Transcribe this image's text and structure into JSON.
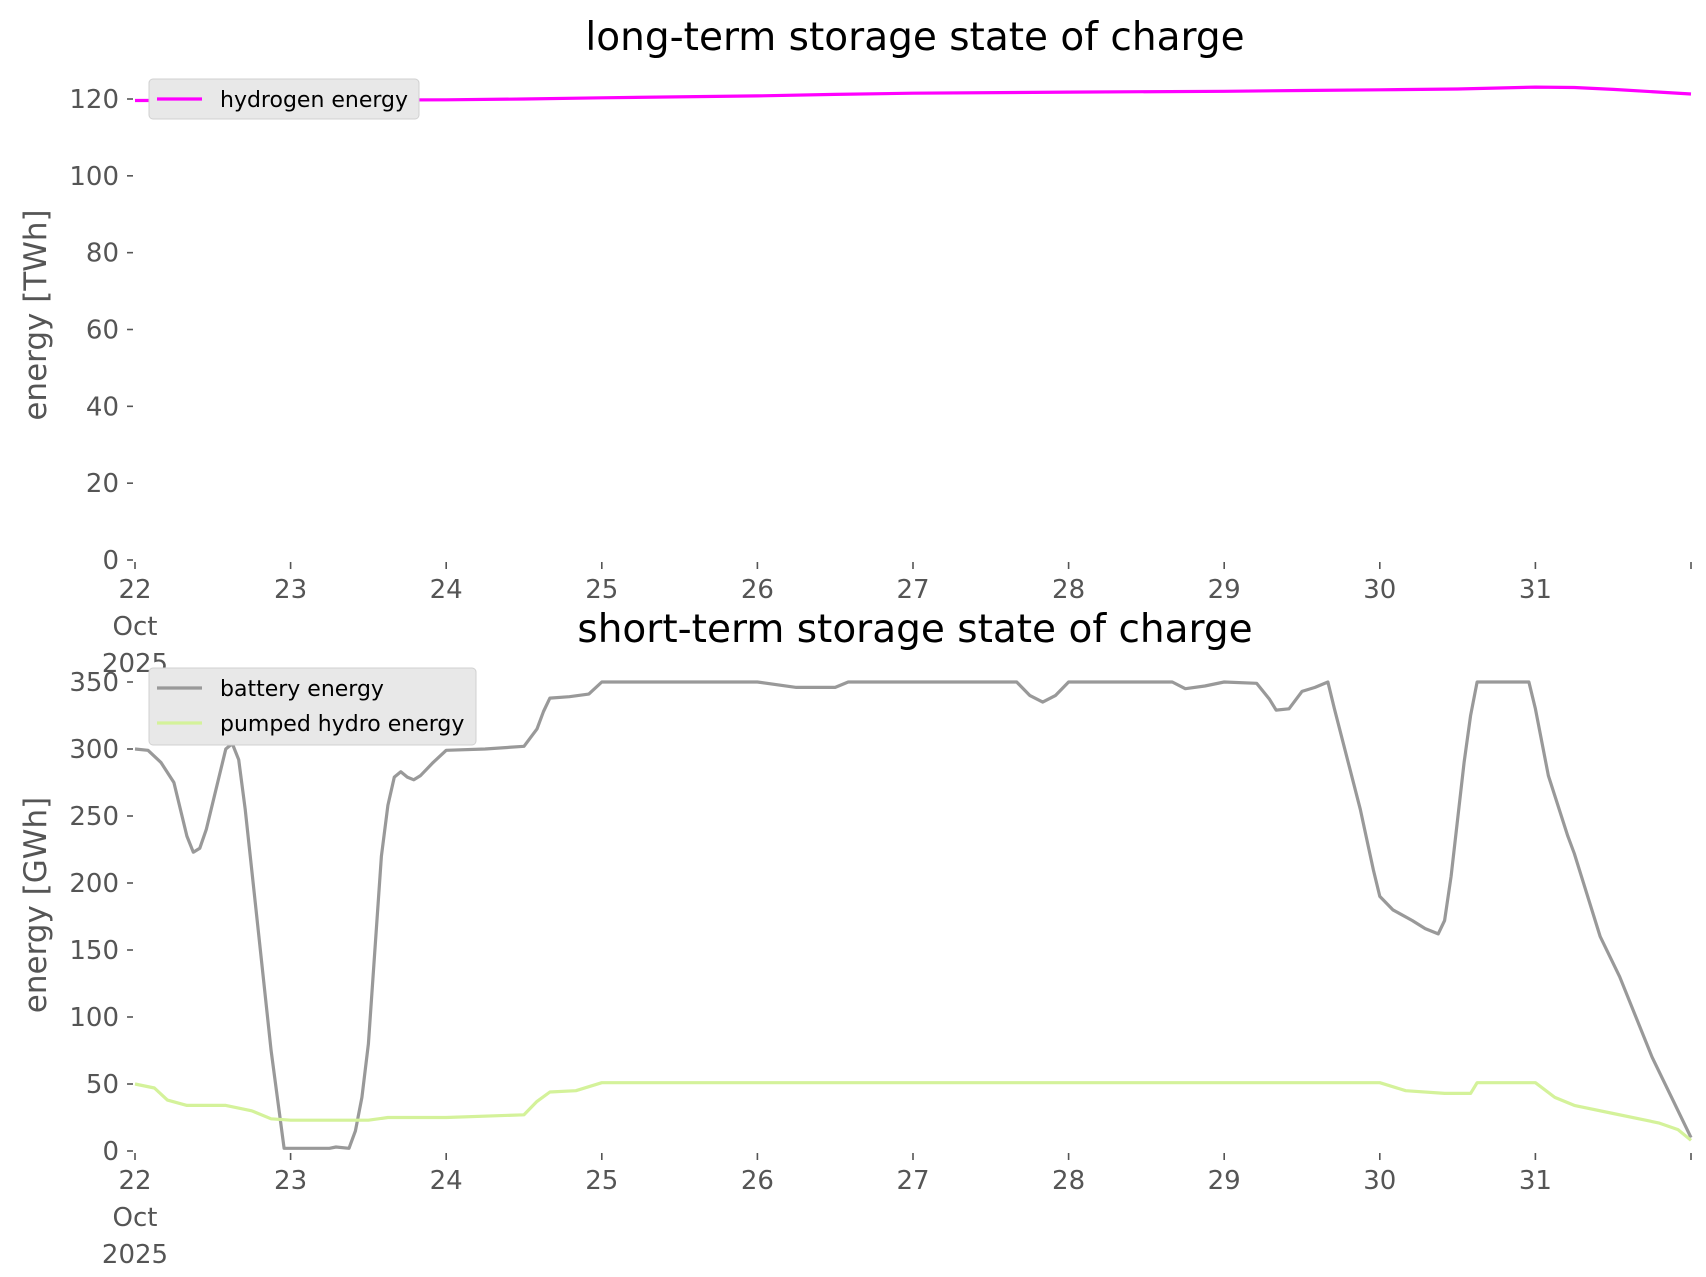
{
  "chart_data": [
    {
      "type": "line",
      "title": "long-term storage state of charge",
      "xlabel": "",
      "ylabel": "energy [TWh]",
      "ylim": [
        0,
        120
      ],
      "yticks": [
        0,
        20,
        40,
        60,
        80,
        100,
        120
      ],
      "xlim": [
        "2025-10-22 00:00",
        "2025-11-01 00:00"
      ],
      "xticks": [
        "22\nOct\n2025",
        "23",
        "24",
        "25",
        "26",
        "27",
        "28",
        "29",
        "30",
        "31",
        ""
      ],
      "grid": false,
      "legend": "top-left",
      "series": [
        {
          "name": "hydrogen energy",
          "color": "#ff00ff",
          "points": [
            [
              "2025-10-22 00:00",
              119.6
            ],
            [
              "2025-10-23 00:00",
              119.7
            ],
            [
              "2025-10-24 00:00",
              119.8
            ],
            [
              "2025-10-24 12:00",
              120.0
            ],
            [
              "2025-10-25 00:00",
              120.3
            ],
            [
              "2025-10-26 00:00",
              120.8
            ],
            [
              "2025-10-26 12:00",
              121.2
            ],
            [
              "2025-10-27 00:00",
              121.5
            ],
            [
              "2025-10-28 00:00",
              121.8
            ],
            [
              "2025-10-29 00:00",
              122.0
            ],
            [
              "2025-10-29 12:00",
              122.2
            ],
            [
              "2025-10-30 00:00",
              122.4
            ],
            [
              "2025-10-30 12:00",
              122.6
            ],
            [
              "2025-10-31 00:00",
              123.1
            ],
            [
              "2025-10-31 06:00",
              123.0
            ],
            [
              "2025-10-31 12:00",
              122.5
            ],
            [
              "2025-11-01 00:00",
              121.3
            ]
          ]
        }
      ]
    },
    {
      "type": "line",
      "title": "short-term storage state of charge",
      "xlabel": "",
      "ylabel": "energy [GWh]",
      "ylim": [
        0,
        350
      ],
      "yticks": [
        0,
        50,
        100,
        150,
        200,
        250,
        300,
        350
      ],
      "xlim": [
        "2025-10-22 00:00",
        "2025-11-01 00:00"
      ],
      "xticks": [
        "22\nOct\n2025",
        "23",
        "24",
        "25",
        "26",
        "27",
        "28",
        "29",
        "30",
        "31",
        ""
      ],
      "grid": false,
      "legend": "top-left",
      "series": [
        {
          "name": "battery energy",
          "color": "#999999",
          "points": [
            [
              "2025-10-22 00:00",
              300
            ],
            [
              "2025-10-22 02:00",
              299
            ],
            [
              "2025-10-22 04:00",
              290
            ],
            [
              "2025-10-22 06:00",
              275
            ],
            [
              "2025-10-22 08:00",
              235
            ],
            [
              "2025-10-22 09:00",
              223
            ],
            [
              "2025-10-22 10:00",
              226
            ],
            [
              "2025-10-22 11:00",
              240
            ],
            [
              "2025-10-22 13:00",
              280
            ],
            [
              "2025-10-22 14:00",
              300
            ],
            [
              "2025-10-22 15:00",
              304
            ],
            [
              "2025-10-22 16:00",
              292
            ],
            [
              "2025-10-22 17:00",
              255
            ],
            [
              "2025-10-22 19:00",
              165
            ],
            [
              "2025-10-22 21:00",
              75
            ],
            [
              "2025-10-22 23:00",
              2
            ],
            [
              "2025-10-23 06:00",
              2
            ],
            [
              "2025-10-23 07:00",
              3
            ],
            [
              "2025-10-23 09:00",
              2
            ],
            [
              "2025-10-23 10:00",
              15
            ],
            [
              "2025-10-23 11:00",
              40
            ],
            [
              "2025-10-23 12:00",
              80
            ],
            [
              "2025-10-23 14:00",
              220
            ],
            [
              "2025-10-23 15:00",
              258
            ],
            [
              "2025-10-23 16:00",
              279
            ],
            [
              "2025-10-23 17:00",
              283
            ],
            [
              "2025-10-23 18:00",
              279
            ],
            [
              "2025-10-23 19:00",
              277
            ],
            [
              "2025-10-23 20:00",
              280
            ],
            [
              "2025-10-23 22:00",
              290
            ],
            [
              "2025-10-24 00:00",
              299
            ],
            [
              "2025-10-24 06:00",
              300
            ],
            [
              "2025-10-24 12:00",
              302
            ],
            [
              "2025-10-24 14:00",
              315
            ],
            [
              "2025-10-24 15:00",
              328
            ],
            [
              "2025-10-24 16:00",
              338
            ],
            [
              "2025-10-24 19:00",
              339
            ],
            [
              "2025-10-24 22:00",
              341
            ],
            [
              "2025-10-25 00:00",
              350
            ],
            [
              "2025-10-26 00:00",
              350
            ],
            [
              "2025-10-26 06:00",
              346
            ],
            [
              "2025-10-26 12:00",
              346
            ],
            [
              "2025-10-26 14:00",
              350
            ],
            [
              "2025-10-27 00:00",
              350
            ],
            [
              "2025-10-27 16:00",
              350
            ],
            [
              "2025-10-27 18:00",
              340
            ],
            [
              "2025-10-27 20:00",
              335
            ],
            [
              "2025-10-27 22:00",
              340
            ],
            [
              "2025-10-28 00:00",
              350
            ],
            [
              "2025-10-28 16:00",
              350
            ],
            [
              "2025-10-28 18:00",
              345
            ],
            [
              "2025-10-28 21:00",
              347
            ],
            [
              "2025-10-29 00:00",
              350
            ],
            [
              "2025-10-29 05:00",
              349
            ],
            [
              "2025-10-29 07:00",
              337
            ],
            [
              "2025-10-29 08:00",
              329
            ],
            [
              "2025-10-29 10:00",
              330
            ],
            [
              "2025-10-29 12:00",
              343
            ],
            [
              "2025-10-29 14:00",
              346
            ],
            [
              "2025-10-29 16:00",
              350
            ],
            [
              "2025-10-29 17:00",
              330
            ],
            [
              "2025-10-29 21:00",
              255
            ],
            [
              "2025-10-29 23:00",
              210
            ],
            [
              "2025-10-30 00:00",
              190
            ],
            [
              "2025-10-30 02:00",
              180
            ],
            [
              "2025-10-30 05:00",
              172
            ],
            [
              "2025-10-30 07:00",
              166
            ],
            [
              "2025-10-30 09:00",
              162
            ],
            [
              "2025-10-30 10:00",
              172
            ],
            [
              "2025-10-30 11:00",
              205
            ],
            [
              "2025-10-30 13:00",
              290
            ],
            [
              "2025-10-30 14:00",
              325
            ],
            [
              "2025-10-30 15:00",
              350
            ],
            [
              "2025-10-30 23:00",
              350
            ],
            [
              "2025-10-31 00:00",
              330
            ],
            [
              "2025-10-31 02:00",
              280
            ],
            [
              "2025-10-31 05:00",
              235
            ],
            [
              "2025-10-31 06:00",
              222
            ],
            [
              "2025-10-31 10:00",
              160
            ],
            [
              "2025-10-31 13:00",
              130
            ],
            [
              "2025-10-31 18:00",
              70
            ],
            [
              "2025-10-31 21:00",
              40
            ],
            [
              "2025-11-01 00:00",
              10
            ]
          ]
        },
        {
          "name": "pumped hydro energy",
          "color": "#d4f29a",
          "points": [
            [
              "2025-10-22 00:00",
              50
            ],
            [
              "2025-10-22 03:00",
              47
            ],
            [
              "2025-10-22 05:00",
              38
            ],
            [
              "2025-10-22 08:00",
              34
            ],
            [
              "2025-10-22 14:00",
              34
            ],
            [
              "2025-10-22 18:00",
              30
            ],
            [
              "2025-10-22 21:00",
              24
            ],
            [
              "2025-10-23 00:00",
              23
            ],
            [
              "2025-10-23 12:00",
              23
            ],
            [
              "2025-10-23 15:00",
              25
            ],
            [
              "2025-10-24 00:00",
              25
            ],
            [
              "2025-10-24 12:00",
              27
            ],
            [
              "2025-10-24 14:00",
              37
            ],
            [
              "2025-10-24 16:00",
              44
            ],
            [
              "2025-10-24 20:00",
              45
            ],
            [
              "2025-10-25 00:00",
              51
            ],
            [
              "2025-10-30 00:00",
              51
            ],
            [
              "2025-10-30 04:00",
              45
            ],
            [
              "2025-10-30 10:00",
              43
            ],
            [
              "2025-10-30 14:00",
              43
            ],
            [
              "2025-10-30 15:00",
              51
            ],
            [
              "2025-10-31 00:00",
              51
            ],
            [
              "2025-10-31 03:00",
              40
            ],
            [
              "2025-10-31 06:00",
              34
            ],
            [
              "2025-10-31 12:00",
              28
            ],
            [
              "2025-10-31 19:00",
              21
            ],
            [
              "2025-10-31 22:00",
              16
            ],
            [
              "2025-11-01 00:00",
              8
            ]
          ]
        }
      ]
    }
  ]
}
